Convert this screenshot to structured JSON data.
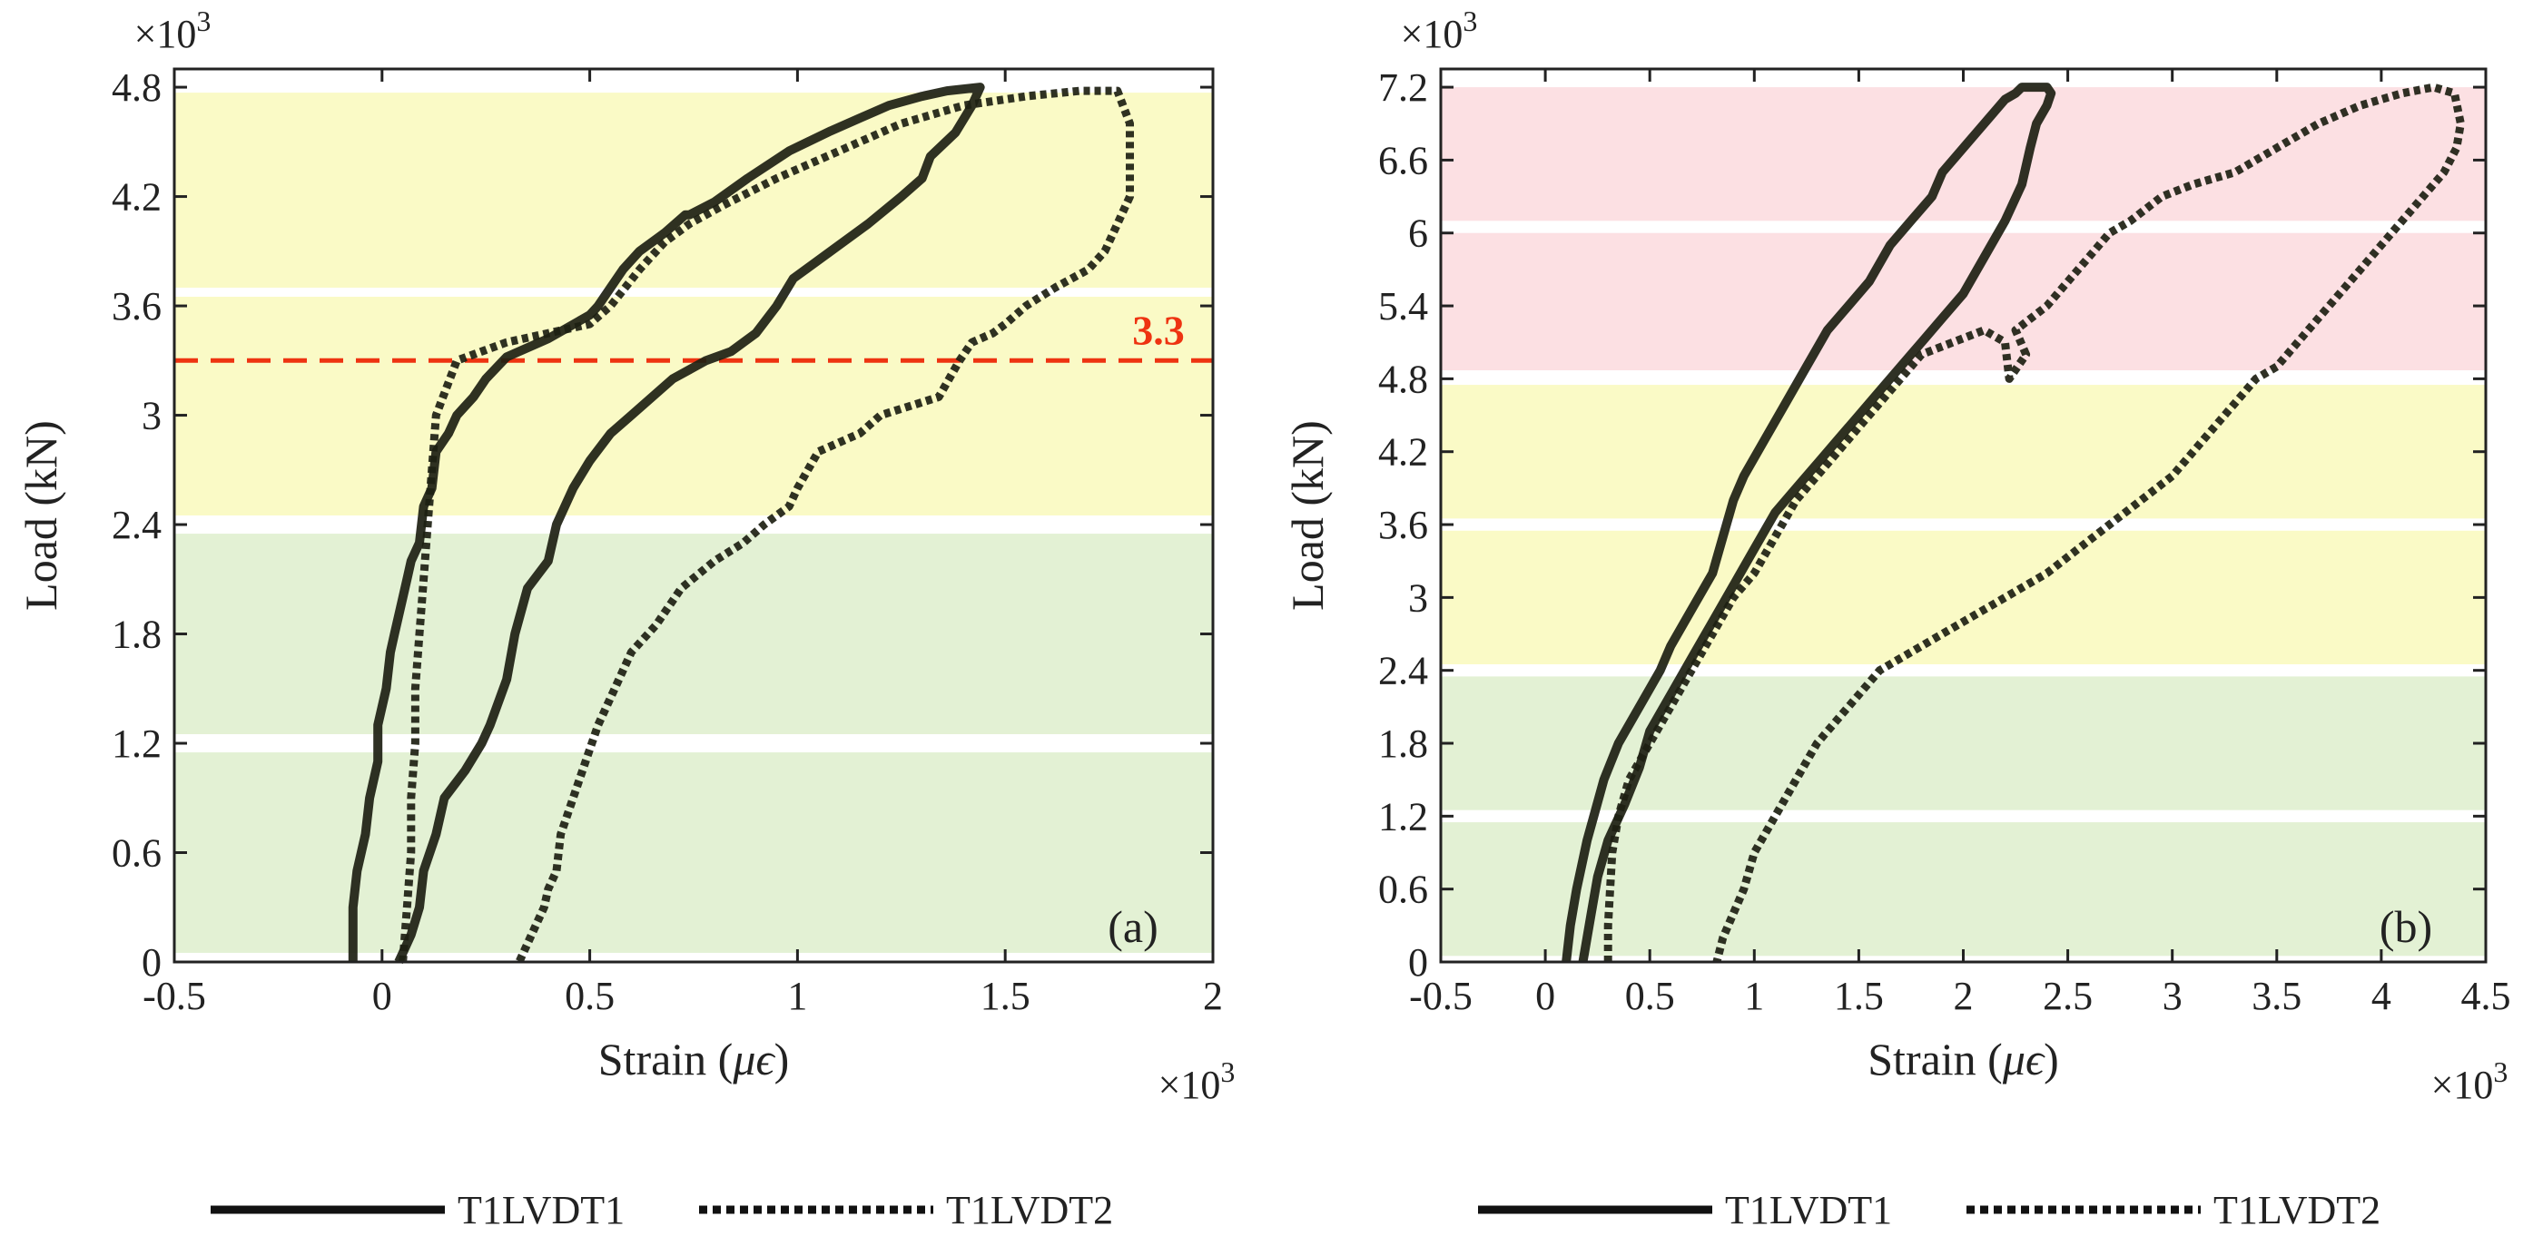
{
  "chart_data": [
    {
      "type": "line",
      "panel_label": "(a)",
      "xlabel_prefix": "Strain (",
      "xlabel_symbol": "μϵ",
      "xlabel_suffix": ")",
      "ylabel": "Load (kN)",
      "x_exponent": "×10",
      "x_exponent_power": "3",
      "y_exponent": "×10",
      "y_exponent_power": "3",
      "xlim": [
        -0.5,
        2.0
      ],
      "ylim": [
        0,
        4.9
      ],
      "xticks": [
        -0.5,
        0,
        0.5,
        1,
        1.5,
        2
      ],
      "xtick_labels": [
        "-0.5",
        "0",
        "0.5",
        "1",
        "1.5",
        "2"
      ],
      "yticks": [
        0,
        0.6,
        1.2,
        1.8,
        2.4,
        3,
        3.6,
        4.2,
        4.8
      ],
      "ytick_labels": [
        "0",
        "0.6",
        "1.2",
        "1.8",
        "2.4",
        "3",
        "3.6",
        "4.2",
        "4.8"
      ],
      "bands": [
        {
          "y0": 0.05,
          "y1": 1.15,
          "color": "#e3f1d4"
        },
        {
          "y0": 1.25,
          "y1": 2.35,
          "color": "#e3f1d4"
        },
        {
          "y0": 2.45,
          "y1": 3.65,
          "color": "#fafac6"
        },
        {
          "y0": 3.7,
          "y1": 4.77,
          "color": "#fafac6"
        }
      ],
      "threshold": {
        "value": 3.3,
        "label": "3.3",
        "color": "#ee3311"
      },
      "series": [
        {
          "name": "T1LVDT1",
          "style": "solid",
          "x": [
            -0.07,
            -0.07,
            -0.06,
            -0.04,
            -0.03,
            -0.01,
            -0.01,
            0.01,
            0.02,
            0.03,
            0.05,
            0.06,
            0.07,
            0.09,
            0.1,
            0.12,
            0.13,
            0.16,
            0.18,
            0.22,
            0.25,
            0.3,
            0.4,
            0.5,
            0.52,
            0.55,
            0.58,
            0.62,
            0.68,
            0.73,
            0.74,
            0.8,
            0.88,
            0.98,
            1.08,
            1.15,
            1.22,
            1.3,
            1.36,
            1.44,
            1.42,
            1.38,
            1.32,
            1.3,
            1.25,
            1.17,
            1.08,
            0.99,
            0.95,
            0.9,
            0.84,
            0.78,
            0.7,
            0.6,
            0.55,
            0.5,
            0.46,
            0.42,
            0.4,
            0.35,
            0.32,
            0.3,
            0.26,
            0.24,
            0.2,
            0.15,
            0.13,
            0.1,
            0.09,
            0.07,
            0.05,
            0.04
          ],
          "y": [
            0.0,
            0.3,
            0.5,
            0.7,
            0.9,
            1.1,
            1.3,
            1.5,
            1.7,
            1.8,
            2.0,
            2.1,
            2.2,
            2.3,
            2.5,
            2.6,
            2.8,
            2.9,
            3.0,
            3.1,
            3.2,
            3.32,
            3.42,
            3.55,
            3.6,
            3.7,
            3.8,
            3.9,
            4.0,
            4.1,
            4.1,
            4.17,
            4.3,
            4.45,
            4.56,
            4.63,
            4.7,
            4.75,
            4.78,
            4.8,
            4.7,
            4.55,
            4.42,
            4.3,
            4.2,
            4.05,
            3.9,
            3.75,
            3.6,
            3.45,
            3.35,
            3.3,
            3.2,
            3.0,
            2.9,
            2.75,
            2.6,
            2.4,
            2.2,
            2.05,
            1.8,
            1.55,
            1.3,
            1.2,
            1.05,
            0.9,
            0.7,
            0.5,
            0.3,
            0.15,
            0.05,
            0.0
          ]
        },
        {
          "name": "T1LVDT2",
          "style": "dotted",
          "x": [
            0.05,
            0.06,
            0.07,
            0.07,
            0.08,
            0.08,
            0.09,
            0.1,
            0.11,
            0.12,
            0.13,
            0.18,
            0.3,
            0.5,
            0.55,
            0.62,
            0.68,
            0.74,
            0.82,
            0.95,
            1.1,
            1.25,
            1.4,
            1.55,
            1.68,
            1.77,
            1.8,
            1.8,
            1.8,
            1.77,
            1.74,
            1.7,
            1.62,
            1.55,
            1.5,
            1.47,
            1.42,
            1.39,
            1.34,
            1.2,
            1.15,
            1.05,
            1.0,
            0.98,
            0.92,
            0.87,
            0.8,
            0.72,
            0.66,
            0.6,
            0.56,
            0.52,
            0.49,
            0.46,
            0.43,
            0.42,
            0.4,
            0.39,
            0.37,
            0.35,
            0.33
          ],
          "y": [
            0.0,
            0.3,
            0.6,
            0.9,
            1.2,
            1.5,
            1.8,
            2.1,
            2.4,
            2.7,
            3.0,
            3.3,
            3.4,
            3.5,
            3.6,
            3.8,
            3.95,
            4.05,
            4.15,
            4.3,
            4.45,
            4.6,
            4.7,
            4.75,
            4.78,
            4.78,
            4.6,
            4.4,
            4.2,
            4.05,
            3.9,
            3.8,
            3.7,
            3.6,
            3.5,
            3.45,
            3.4,
            3.3,
            3.1,
            3.0,
            2.9,
            2.8,
            2.6,
            2.5,
            2.4,
            2.3,
            2.2,
            2.05,
            1.85,
            1.7,
            1.5,
            1.3,
            1.1,
            0.9,
            0.7,
            0.5,
            0.4,
            0.3,
            0.2,
            0.1,
            0.0
          ]
        }
      ],
      "legend": [
        {
          "label": "T1LVDT1",
          "style": "solid"
        },
        {
          "label": "T1LVDT2",
          "style": "dotted"
        }
      ]
    },
    {
      "type": "line",
      "panel_label": "(b)",
      "xlabel_prefix": "Strain (",
      "xlabel_symbol": "μϵ",
      "xlabel_suffix": ")",
      "ylabel": "Load (kN)",
      "x_exponent": "×10",
      "x_exponent_power": "3",
      "y_exponent": "×10",
      "y_exponent_power": "3",
      "xlim": [
        -0.5,
        4.5
      ],
      "ylim": [
        0,
        7.35
      ],
      "xticks": [
        -0.5,
        0,
        0.5,
        1,
        1.5,
        2,
        2.5,
        3,
        3.5,
        4,
        4.5
      ],
      "xtick_labels": [
        "-0.5",
        "0",
        "0.5",
        "1",
        "1.5",
        "2",
        "2.5",
        "3",
        "3.5",
        "4",
        "4.5"
      ],
      "yticks": [
        0,
        0.6,
        1.2,
        1.8,
        2.4,
        3,
        3.6,
        4.2,
        4.8,
        5.4,
        6,
        6.6,
        7.2
      ],
      "ytick_labels": [
        "0",
        "0.6",
        "1.2",
        "1.8",
        "2.4",
        "3",
        "3.6",
        "4.2",
        "4.8",
        "5.4",
        "6",
        "6.6",
        "7.2"
      ],
      "bands": [
        {
          "y0": 0.05,
          "y1": 1.15,
          "color": "#e3f1d4"
        },
        {
          "y0": 1.25,
          "y1": 2.35,
          "color": "#e3f1d4"
        },
        {
          "y0": 2.45,
          "y1": 3.55,
          "color": "#fafac6"
        },
        {
          "y0": 3.65,
          "y1": 4.75,
          "color": "#fafac6"
        },
        {
          "y0": 4.87,
          "y1": 6.0,
          "color": "#fce0e3"
        },
        {
          "y0": 6.1,
          "y1": 7.2,
          "color": "#fce0e3"
        }
      ],
      "series": [
        {
          "name": "T1LVDT1",
          "style": "solid",
          "x": [
            0.1,
            0.12,
            0.15,
            0.2,
            0.28,
            0.35,
            0.45,
            0.55,
            0.6,
            0.7,
            0.8,
            0.85,
            0.9,
            0.95,
            1.05,
            1.15,
            1.25,
            1.35,
            1.45,
            1.55,
            1.65,
            1.75,
            1.85,
            1.9,
            1.95,
            2.0,
            2.1,
            2.15,
            2.2,
            2.25,
            2.28,
            2.3,
            2.35,
            2.4,
            2.42,
            2.4,
            2.35,
            2.32,
            2.28,
            2.2,
            2.1,
            2.0,
            1.9,
            1.8,
            1.7,
            1.6,
            1.5,
            1.4,
            1.3,
            1.2,
            1.1,
            1.0,
            0.9,
            0.8,
            0.7,
            0.6,
            0.5,
            0.45,
            0.38,
            0.3,
            0.25,
            0.22,
            0.2,
            0.18
          ],
          "y": [
            0.0,
            0.3,
            0.6,
            1.0,
            1.5,
            1.8,
            2.1,
            2.4,
            2.6,
            2.9,
            3.2,
            3.5,
            3.8,
            4.0,
            4.3,
            4.6,
            4.9,
            5.2,
            5.4,
            5.6,
            5.9,
            6.1,
            6.3,
            6.5,
            6.6,
            6.7,
            6.9,
            7.0,
            7.1,
            7.15,
            7.2,
            7.2,
            7.2,
            7.2,
            7.15,
            7.05,
            6.9,
            6.7,
            6.4,
            6.1,
            5.8,
            5.5,
            5.3,
            5.1,
            4.9,
            4.7,
            4.5,
            4.3,
            4.1,
            3.9,
            3.7,
            3.4,
            3.1,
            2.8,
            2.5,
            2.2,
            1.9,
            1.6,
            1.3,
            1.0,
            0.7,
            0.4,
            0.2,
            0.0
          ]
        },
        {
          "name": "T1LVDT2",
          "style": "dotted",
          "x": [
            0.3,
            0.3,
            0.31,
            0.32,
            0.35,
            0.4,
            0.5,
            0.6,
            0.7,
            0.8,
            0.9,
            1.0,
            1.1,
            1.2,
            1.3,
            1.4,
            1.5,
            1.6,
            1.7,
            1.8,
            1.95,
            2.1,
            2.2,
            2.22,
            2.3,
            2.25,
            2.4,
            2.5,
            2.6,
            2.7,
            2.8,
            2.95,
            3.1,
            3.3,
            3.5,
            3.7,
            3.9,
            4.1,
            4.25,
            4.35,
            4.38,
            4.36,
            4.3,
            4.2,
            4.1,
            4.0,
            3.9,
            3.8,
            3.7,
            3.6,
            3.5,
            3.4,
            3.3,
            3.2,
            3.1,
            3.0,
            2.85,
            2.7,
            2.55,
            2.4,
            2.2,
            2.0,
            1.8,
            1.6,
            1.5,
            1.4,
            1.3,
            1.2,
            1.1,
            1.0,
            0.95,
            0.9,
            0.85,
            0.82
          ],
          "y": [
            0.0,
            0.3,
            0.6,
            0.9,
            1.2,
            1.5,
            1.8,
            2.1,
            2.4,
            2.7,
            3.0,
            3.2,
            3.5,
            3.8,
            4.0,
            4.2,
            4.4,
            4.6,
            4.8,
            5.0,
            5.1,
            5.2,
            5.1,
            4.8,
            5.0,
            5.2,
            5.4,
            5.6,
            5.8,
            6.0,
            6.1,
            6.3,
            6.4,
            6.5,
            6.7,
            6.9,
            7.05,
            7.15,
            7.2,
            7.15,
            6.9,
            6.7,
            6.5,
            6.3,
            6.1,
            5.9,
            5.7,
            5.5,
            5.3,
            5.1,
            4.9,
            4.8,
            4.6,
            4.4,
            4.2,
            4.0,
            3.8,
            3.6,
            3.4,
            3.2,
            3.0,
            2.8,
            2.6,
            2.4,
            2.2,
            2.0,
            1.8,
            1.5,
            1.2,
            0.9,
            0.6,
            0.4,
            0.2,
            0.0
          ]
        }
      ],
      "legend": [
        {
          "label": "T1LVDT1",
          "style": "solid"
        },
        {
          "label": "T1LVDT2",
          "style": "dotted"
        }
      ]
    }
  ]
}
